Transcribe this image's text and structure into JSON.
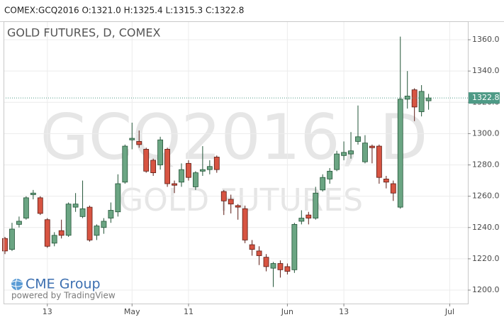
{
  "header": "COMEX:GCQ2016 O:1321.0 H:1325.4 L:1315.3 C:1322.8",
  "logo": {
    "brand": "CME Group",
    "powered": "powered by TradingView"
  },
  "chart_data": {
    "type": "candlestick",
    "title": "GOLD FUTURES, D, COMEX",
    "watermark": [
      "GCQ2016, D",
      "GOLD FUTURES"
    ],
    "categories": [
      null,
      null,
      null,
      null,
      null,
      null,
      "13",
      null,
      null,
      null,
      null,
      null,
      null,
      null,
      null,
      null,
      null,
      null,
      "May",
      null,
      null,
      null,
      null,
      null,
      null,
      null,
      "11",
      null,
      null,
      null,
      null,
      null,
      null,
      null,
      null,
      null,
      null,
      null,
      null,
      null,
      "Jun",
      null,
      null,
      null,
      null,
      null,
      null,
      null,
      "13",
      null,
      null,
      null,
      null,
      null,
      null,
      null,
      null,
      null,
      null,
      null,
      null,
      null,
      null,
      "Jul"
    ],
    "open": [
      1233,
      1226,
      1242,
      1246,
      1261,
      1259,
      1245,
      1230,
      1238,
      1235,
      1253,
      1247,
      1253,
      1235,
      1240,
      1246,
      1250,
      1269,
      1296,
      1295,
      1290,
      1283,
      1280,
      1290,
      1268,
      1269,
      1281,
      1266,
      1276,
      1277,
      1285,
      1263,
      1258,
      1254,
      1252,
      1229,
      1225,
      1221,
      1214,
      1217,
      1215,
      1213,
      1244,
      1248,
      1246,
      1264,
      1271,
      1277,
      1286,
      1287,
      1295,
      1282,
      1292,
      1292,
      1271,
      1268,
      1253,
      1322,
      1328,
      1314,
      1321.0,
      null,
      null,
      null
    ],
    "high": [
      1234,
      1243,
      1247,
      1260,
      1264,
      1260,
      1246,
      1237,
      1245,
      1256,
      1262,
      1270,
      1254,
      1242,
      1246,
      1256,
      1274,
      1293,
      1307,
      1302,
      1291,
      1284,
      1298,
      1291,
      1270,
      1281,
      1283,
      1276,
      1292,
      1283,
      1286,
      1264,
      1261,
      1255,
      1254,
      1232,
      1228,
      1223,
      1218,
      1219,
      1217,
      1243,
      1251,
      1250,
      1266,
      1274,
      1278,
      1289,
      1295,
      1301,
      1318,
      1299,
      1293,
      1293,
      1273,
      1270,
      1362,
      1340,
      1329,
      1331,
      1325.4,
      null,
      null,
      null
    ],
    "low": [
      1223,
      1225,
      1240,
      1245,
      1258,
      1248,
      1227,
      1228,
      1233,
      1234,
      1250,
      1246,
      1231,
      1232,
      1236,
      1243,
      1247,
      1268,
      1290,
      1291,
      1275,
      1273,
      1277,
      1266,
      1262,
      1266,
      1270,
      1264,
      1273,
      1274,
      1275,
      1248,
      1249,
      1245,
      1230,
      1222,
      1216,
      1212,
      1202,
      1208,
      1210,
      1211,
      1242,
      1242,
      1245,
      1263,
      1268,
      1276,
      1283,
      1284,
      1293,
      1281,
      1281,
      1268,
      1265,
      1257,
      1252,
      1316,
      1308,
      1311,
      1315.3,
      null,
      null,
      null
    ],
    "close": [
      1225,
      1239,
      1244,
      1259,
      1262,
      1249,
      1228,
      1235,
      1235,
      1255,
      1255,
      1252,
      1232,
      1241,
      1244,
      1251,
      1268,
      1292,
      1297,
      1293,
      1276,
      1275,
      1296,
      1268,
      1267,
      1277,
      1272,
      1275,
      1277,
      1279,
      1277,
      1257,
      1255,
      1253,
      1232,
      1226,
      1222,
      1215,
      1217,
      1213,
      1212,
      1242,
      1246,
      1246,
      1262,
      1272,
      1276,
      1287,
      1288,
      1289,
      1298,
      1294,
      1291,
      1272,
      1269,
      1262,
      1322,
      1324,
      1317,
      1327,
      1322.8,
      null,
      null,
      null
    ],
    "ylim": [
      1191.4,
      1371.8
    ],
    "yticks": [
      {
        "value": 1200,
        "label": "1200.0"
      },
      {
        "value": 1220,
        "label": "1220.0"
      },
      {
        "value": 1240,
        "label": "1240.0"
      },
      {
        "value": 1260,
        "label": "1260.0"
      },
      {
        "value": 1280,
        "label": "1280.0"
      },
      {
        "value": 1300,
        "label": "1300.0"
      },
      {
        "value": 1320,
        "label": "1320.0"
      },
      {
        "value": 1340,
        "label": "1340.0"
      },
      {
        "value": 1360,
        "label": "1360.0"
      }
    ],
    "grid": true,
    "up_color": "#6ba583",
    "down_color": "#d75442",
    "last_price_color": "#4e9a86"
  }
}
